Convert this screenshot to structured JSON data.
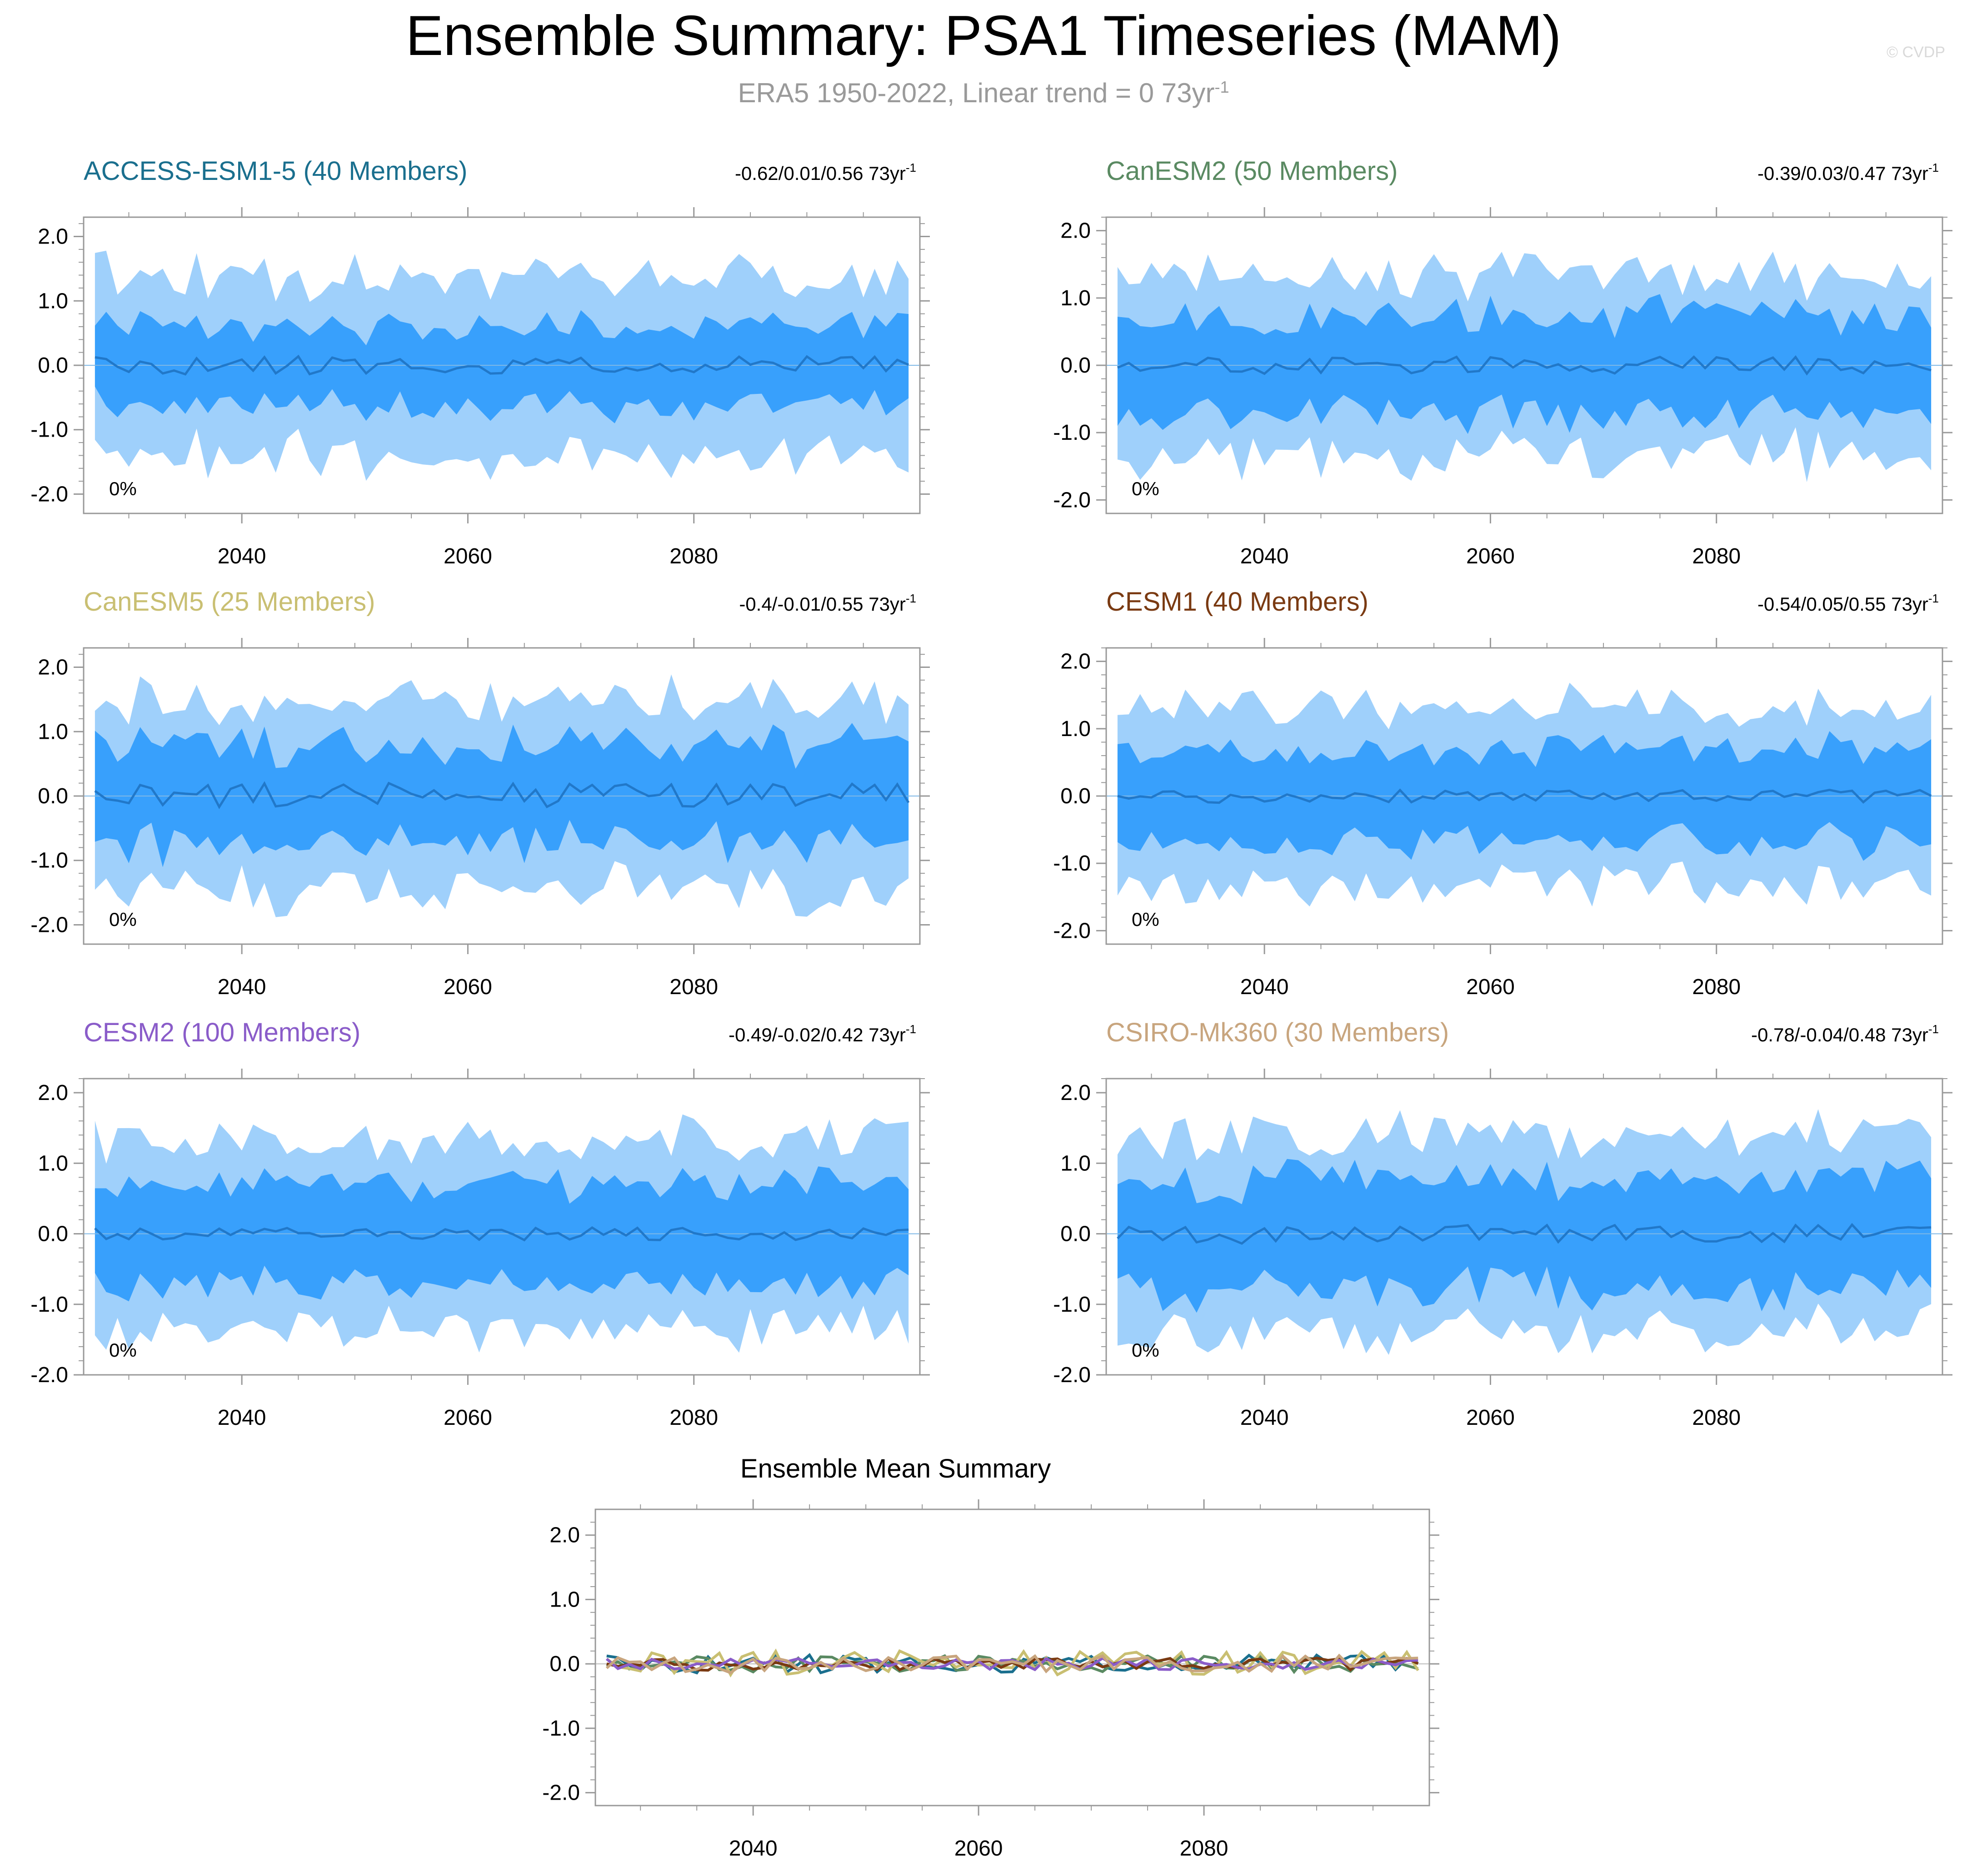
{
  "title": "Ensemble Summary: PSA1 Timeseries (MAM)",
  "subtitle": "ERA5 1950-2022, Linear trend = 0 73yr",
  "subtitle_sup": "-1",
  "credit": "© CVDP",
  "colors": {
    "outer_band": "#9fd0fb",
    "inner_band": "#38a0fc",
    "mean_line": "#2178c9",
    "axis": "#999999",
    "text": "#000000"
  },
  "chart_data": [
    {
      "type": "area",
      "title": "ACCESS-ESM1-5 (40 Members)",
      "title_color": "#1a6f8e",
      "trend_text": "-0.62/0.01/0.56 73yr",
      "trend_sup": "-1",
      "pct_label": "0%",
      "x_start": 2027,
      "x_end": 2099,
      "xlim": [
        2026,
        2100
      ],
      "ylim": [
        -2.3,
        2.3
      ],
      "xticks": [
        2040,
        2060,
        2080
      ],
      "yticks": [
        2.0,
        1.0,
        0.0,
        -1.0,
        -2.0
      ],
      "ytick_labels": [
        "2.0",
        "1.0",
        "0.0",
        "-1.0",
        "-2.0"
      ],
      "seed": 11,
      "mean_amp": 0.14,
      "inner_base": 0.62,
      "outer_base": 1.35
    },
    {
      "type": "area",
      "title": "CanESM2 (50 Members)",
      "title_color": "#5a8a62",
      "trend_text": "-0.39/0.03/0.47 73yr",
      "trend_sup": "-1",
      "pct_label": "0%",
      "x_start": 2027,
      "x_end": 2099,
      "xlim": [
        2026,
        2100
      ],
      "ylim": [
        -2.2,
        2.2
      ],
      "xticks": [
        2040,
        2060,
        2080
      ],
      "yticks": [
        2.0,
        1.0,
        0.0,
        -1.0,
        -2.0
      ],
      "ytick_labels": [
        "2.0",
        "1.0",
        "0.0",
        "-1.0",
        "-2.0"
      ],
      "seed": 23,
      "mean_amp": 0.13,
      "inner_base": 0.72,
      "outer_base": 1.3
    },
    {
      "type": "area",
      "title": "CanESM5 (25 Members)",
      "title_color": "#c9bf72",
      "trend_text": "-0.4/-0.01/0.55 73yr",
      "trend_sup": "-1",
      "pct_label": "0%",
      "x_start": 2027,
      "x_end": 2099,
      "xlim": [
        2026,
        2100
      ],
      "ylim": [
        -2.3,
        2.3
      ],
      "xticks": [
        2040,
        2060,
        2080
      ],
      "yticks": [
        2.0,
        1.0,
        0.0,
        -1.0,
        -2.0
      ],
      "ytick_labels": [
        "2.0",
        "1.0",
        "0.0",
        "-1.0",
        "-2.0"
      ],
      "seed": 37,
      "mean_amp": 0.2,
      "inner_base": 0.75,
      "outer_base": 1.45
    },
    {
      "type": "area",
      "title": "CESM1 (40 Members)",
      "title_color": "#7a3a12",
      "trend_text": "-0.54/0.05/0.55 73yr",
      "trend_sup": "-1",
      "pct_label": "0%",
      "x_start": 2027,
      "x_end": 2099,
      "xlim": [
        2026,
        2100
      ],
      "ylim": [
        -2.2,
        2.2
      ],
      "xticks": [
        2040,
        2060,
        2080
      ],
      "yticks": [
        2.0,
        1.0,
        0.0,
        -1.0,
        -2.0
      ],
      "ytick_labels": [
        "2.0",
        "1.0",
        "0.0",
        "-1.0",
        "-2.0"
      ],
      "seed": 41,
      "mean_amp": 0.1,
      "inner_base": 0.68,
      "outer_base": 1.3
    },
    {
      "type": "area",
      "title": "CESM2 (100 Members)",
      "title_color": "#8a5cc9",
      "trend_text": "-0.49/-0.02/0.42 73yr",
      "trend_sup": "-1",
      "pct_label": "0%",
      "x_start": 2027,
      "x_end": 2099,
      "xlim": [
        2026,
        2100
      ],
      "ylim": [
        -2.0,
        2.2
      ],
      "xticks": [
        2040,
        2060,
        2080
      ],
      "yticks": [
        2.0,
        1.0,
        0.0,
        -1.0,
        -2.0
      ],
      "ytick_labels": [
        "2.0",
        "1.0",
        "0.0",
        "-1.0",
        "-2.0"
      ],
      "seed": 53,
      "mean_amp": 0.09,
      "inner_base": 0.72,
      "outer_base": 1.3
    },
    {
      "type": "area",
      "title": "CSIRO-Mk360 (30 Members)",
      "title_color": "#c8a57e",
      "trend_text": "-0.78/-0.04/0.48 73yr",
      "trend_sup": "-1",
      "pct_label": "0%",
      "x_start": 2027,
      "x_end": 2099,
      "xlim": [
        2026,
        2100
      ],
      "ylim": [
        -2.0,
        2.2
      ],
      "xticks": [
        2040,
        2060,
        2080
      ],
      "yticks": [
        2.0,
        1.0,
        0.0,
        -1.0,
        -2.0
      ],
      "ytick_labels": [
        "2.0",
        "1.0",
        "0.0",
        "-1.0",
        "-2.0"
      ],
      "seed": 67,
      "mean_amp": 0.14,
      "inner_base": 0.78,
      "outer_base": 1.35
    },
    {
      "type": "line",
      "title": "Ensemble Mean Summary",
      "title_color": "#000000",
      "x_start": 2027,
      "x_end": 2099,
      "xlim": [
        2026,
        2100
      ],
      "ylim": [
        -2.2,
        2.4
      ],
      "xticks": [
        2040,
        2060,
        2080
      ],
      "yticks": [
        2.0,
        1.0,
        0.0,
        -1.0,
        -2.0
      ],
      "ytick_labels": [
        "2.0",
        "1.0",
        "0.0",
        "-1.0",
        "-2.0"
      ],
      "series": [
        {
          "color": "#1a6f8e",
          "seed": 11,
          "amp": 0.14
        },
        {
          "color": "#5a8a62",
          "seed": 23,
          "amp": 0.13
        },
        {
          "color": "#c9bf72",
          "seed": 37,
          "amp": 0.2
        },
        {
          "color": "#7a3a12",
          "seed": 41,
          "amp": 0.1
        },
        {
          "color": "#8a5cc9",
          "seed": 53,
          "amp": 0.09
        },
        {
          "color": "#c8a57e",
          "seed": 67,
          "amp": 0.14
        }
      ]
    }
  ]
}
